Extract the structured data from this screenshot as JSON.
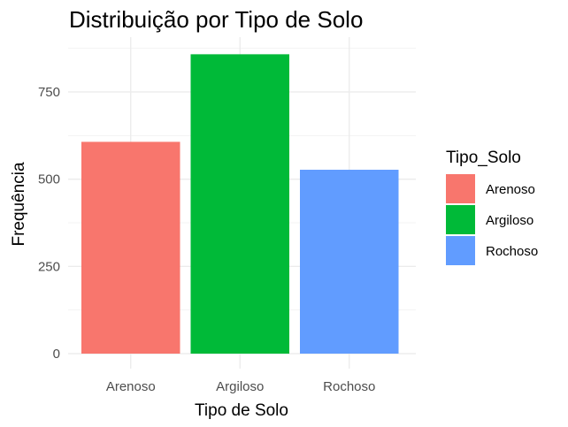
{
  "chart_data": {
    "type": "bar",
    "title": "Distribuição por Tipo de Solo",
    "xlabel": "Tipo de Solo",
    "ylabel": "Frequência",
    "categories": [
      "Arenoso",
      "Argiloso",
      "Rochoso"
    ],
    "values": [
      607,
      858,
      527
    ],
    "colors": [
      "#F8766D",
      "#00BA38",
      "#619CFF"
    ],
    "ylim": [
      0,
      880
    ],
    "yticks": [
      0,
      250,
      500,
      750
    ],
    "grid": true,
    "legend": {
      "title": "Tipo_Solo",
      "position": "right",
      "entries": [
        "Arenoso",
        "Argiloso",
        "Rochoso"
      ]
    }
  }
}
